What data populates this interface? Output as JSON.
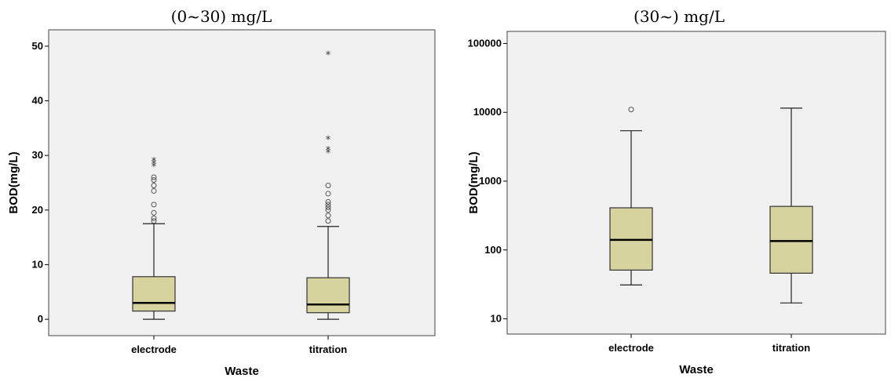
{
  "chart_data": [
    {
      "type": "box",
      "title": "(0~30) mg/L",
      "xlabel": "Waste",
      "ylabel": "BOD(mg/L)",
      "ylim": [
        -3,
        53
      ],
      "yscale": "linear",
      "yticks": [
        0,
        10,
        20,
        30,
        40,
        50
      ],
      "ytick_labels": [
        "0",
        "10",
        "20",
        "30",
        "40",
        "50"
      ],
      "grid": false,
      "box_color": "#d6d39e",
      "plot_bg": "#f0f0f0",
      "categories": [
        "electrode",
        "titration"
      ],
      "boxes": [
        {
          "category": "electrode",
          "whisker_low": 0,
          "q1": 1.5,
          "median": 3,
          "q3": 7.8,
          "whisker_high": 17.5,
          "outliers": [
            18,
            18.5,
            19.5,
            21,
            23.5,
            24.5,
            25.5,
            26
          ],
          "extremes": [
            28,
            28.5,
            29
          ]
        },
        {
          "category": "titration",
          "whisker_low": 0,
          "q1": 1.2,
          "median": 2.7,
          "q3": 7.6,
          "whisker_high": 17,
          "outliers": [
            18,
            19,
            20,
            20.5,
            21,
            21.5,
            23,
            24.5
          ],
          "extremes": [
            30.5,
            31,
            33,
            48.5
          ]
        }
      ]
    },
    {
      "type": "box",
      "title": "(30~) mg/L",
      "xlabel": "Waste",
      "ylabel": "BOD(mg/L)",
      "ylim": [
        6,
        150000
      ],
      "yscale": "log",
      "yticks": [
        10,
        100,
        1000,
        10000,
        100000
      ],
      "ytick_labels": [
        "10",
        "100",
        "1000",
        "10000",
        "100000"
      ],
      "grid": false,
      "box_color": "#d6d39e",
      "plot_bg": "#f0f0f0",
      "categories": [
        "electrode",
        "titration"
      ],
      "boxes": [
        {
          "category": "electrode",
          "whisker_low": 31,
          "q1": 51,
          "median": 140,
          "q3": 410,
          "whisker_high": 5400,
          "outliers": [
            11000
          ],
          "extremes": []
        },
        {
          "category": "titration",
          "whisker_low": 17,
          "q1": 46,
          "median": 135,
          "q3": 430,
          "whisker_high": 11500,
          "outliers": [],
          "extremes": []
        }
      ]
    }
  ]
}
